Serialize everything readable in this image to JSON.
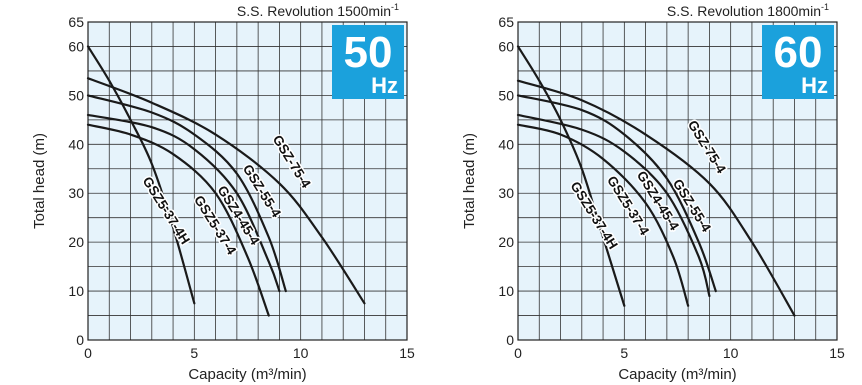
{
  "chart_data": [
    {
      "type": "line",
      "title": "S.S. Revolution 1500min",
      "title_superscript": "-1",
      "badge": {
        "number": "50",
        "unit": "Hz",
        "color": "#1ba1dc"
      },
      "xlabel": "Capacity (m³/min)",
      "ylabel": "Total head (m)",
      "xlim": [
        0,
        15
      ],
      "ylim": [
        0,
        65
      ],
      "xticks": [
        "0",
        "5",
        "10",
        "15"
      ],
      "yticks": [
        "0",
        "10",
        "20",
        "30",
        "40",
        "50",
        "60",
        "65"
      ],
      "grid": true,
      "background": "#e6f3fb",
      "series": [
        {
          "name": "GSZ5-37-4H",
          "points": [
            [
              0,
              60
            ],
            [
              1,
              53
            ],
            [
              2,
              45
            ],
            [
              3,
              36
            ],
            [
              4,
              23
            ],
            [
              5,
              7.5
            ]
          ],
          "label_at": [
            3.5,
            26
          ]
        },
        {
          "name": "GSZ5-37-4",
          "points": [
            [
              0,
              44
            ],
            [
              2,
              42
            ],
            [
              4,
              38
            ],
            [
              6,
              30
            ],
            [
              7.5,
              17
            ],
            [
              8.5,
              5
            ]
          ],
          "label_at": [
            5.8,
            23
          ]
        },
        {
          "name": "GSZ4-45-4",
          "points": [
            [
              0,
              46
            ],
            [
              3,
              43.5
            ],
            [
              5,
              39
            ],
            [
              7,
              30
            ],
            [
              8.5,
              16
            ],
            [
              9,
              10
            ]
          ],
          "label_at": [
            6.9,
            25
          ]
        },
        {
          "name": "GSZ-55-4",
          "points": [
            [
              0,
              50
            ],
            [
              3,
              46.5
            ],
            [
              5,
              42
            ],
            [
              7,
              34
            ],
            [
              8.5,
              21
            ],
            [
              9.3,
              10
            ]
          ],
          "label_at": [
            8.0,
            30
          ]
        },
        {
          "name": "GSZ-75-4",
          "points": [
            [
              0,
              53.5
            ],
            [
              3,
              48.5
            ],
            [
              6,
              42
            ],
            [
              9,
              32
            ],
            [
              11,
              21
            ],
            [
              13,
              7.5
            ]
          ],
          "label_at": [
            9.4,
            36
          ]
        }
      ]
    },
    {
      "type": "line",
      "title": "S.S. Revolution 1800min",
      "title_superscript": "-1",
      "badge": {
        "number": "60",
        "unit": "Hz",
        "color": "#1ba1dc"
      },
      "xlabel": "Capacity (m³/min)",
      "ylabel": "Total head (m)",
      "xlim": [
        0,
        15
      ],
      "ylim": [
        0,
        65
      ],
      "xticks": [
        "0",
        "5",
        "10",
        "15"
      ],
      "yticks": [
        "0",
        "10",
        "20",
        "30",
        "40",
        "50",
        "60",
        "65"
      ],
      "grid": true,
      "background": "#e6f3fb",
      "series": [
        {
          "name": "GSZ5-37-4H",
          "points": [
            [
              0,
              60
            ],
            [
              1,
              53
            ],
            [
              2,
              45
            ],
            [
              3,
              35
            ],
            [
              4,
              21
            ],
            [
              5,
              7
            ]
          ],
          "label_at": [
            3.4,
            25
          ]
        },
        {
          "name": "GSZ5-37-4",
          "points": [
            [
              0,
              44
            ],
            [
              2,
              42
            ],
            [
              4,
              37
            ],
            [
              6,
              28
            ],
            [
              7.3,
              17
            ],
            [
              8,
              7
            ]
          ],
          "label_at": [
            5.0,
            27
          ]
        },
        {
          "name": "GSZ4-45-4",
          "points": [
            [
              0,
              46
            ],
            [
              3,
              43
            ],
            [
              5,
              38.5
            ],
            [
              7,
              30
            ],
            [
              8.5,
              17
            ],
            [
              9,
              9
            ]
          ],
          "label_at": [
            6.4,
            28
          ]
        },
        {
          "name": "GSZ-55-4",
          "points": [
            [
              0,
              50
            ],
            [
              3,
              47
            ],
            [
              5,
              42
            ],
            [
              7,
              33
            ],
            [
              8.5,
              20
            ],
            [
              9.3,
              10
            ]
          ],
          "label_at": [
            8.0,
            27
          ]
        },
        {
          "name": "GSZ-75-4",
          "points": [
            [
              0,
              53
            ],
            [
              3,
              49
            ],
            [
              6,
              42
            ],
            [
              9,
              32
            ],
            [
              11,
              20
            ],
            [
              13,
              5
            ]
          ],
          "label_at": [
            8.7,
            39
          ]
        }
      ]
    }
  ]
}
